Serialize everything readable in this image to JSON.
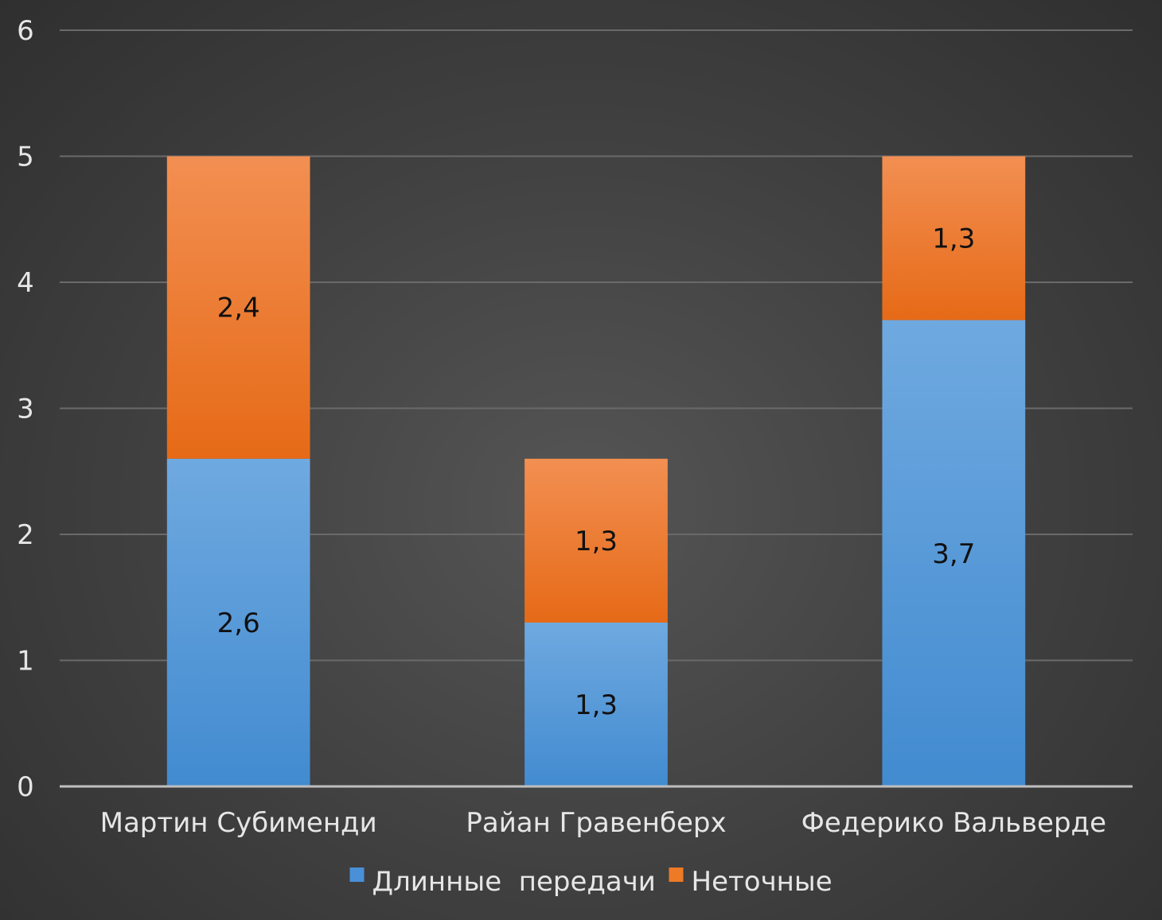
{
  "chart_data": {
    "type": "bar",
    "stacked": true,
    "categories": [
      "Мартин Субименди",
      "Райан Гравенберх",
      "Федерико Вальверде"
    ],
    "series": [
      {
        "name": "Длинные  передачи",
        "values": [
          2.6,
          1.3,
          3.7
        ],
        "labels": [
          "2,6",
          "1,3",
          "3,7"
        ],
        "color": "#4a90d9"
      },
      {
        "name": "Неточные",
        "values": [
          2.4,
          1.3,
          1.3
        ],
        "labels": [
          "2,4",
          "1,3",
          "1,3"
        ],
        "color": "#ed7a25"
      }
    ],
    "title": "",
    "xlabel": "",
    "ylabel": "",
    "ylim": [
      0,
      6
    ],
    "yticks": [
      0,
      1,
      2,
      3,
      4,
      5,
      6
    ],
    "grid": true,
    "legend": "bottom"
  }
}
